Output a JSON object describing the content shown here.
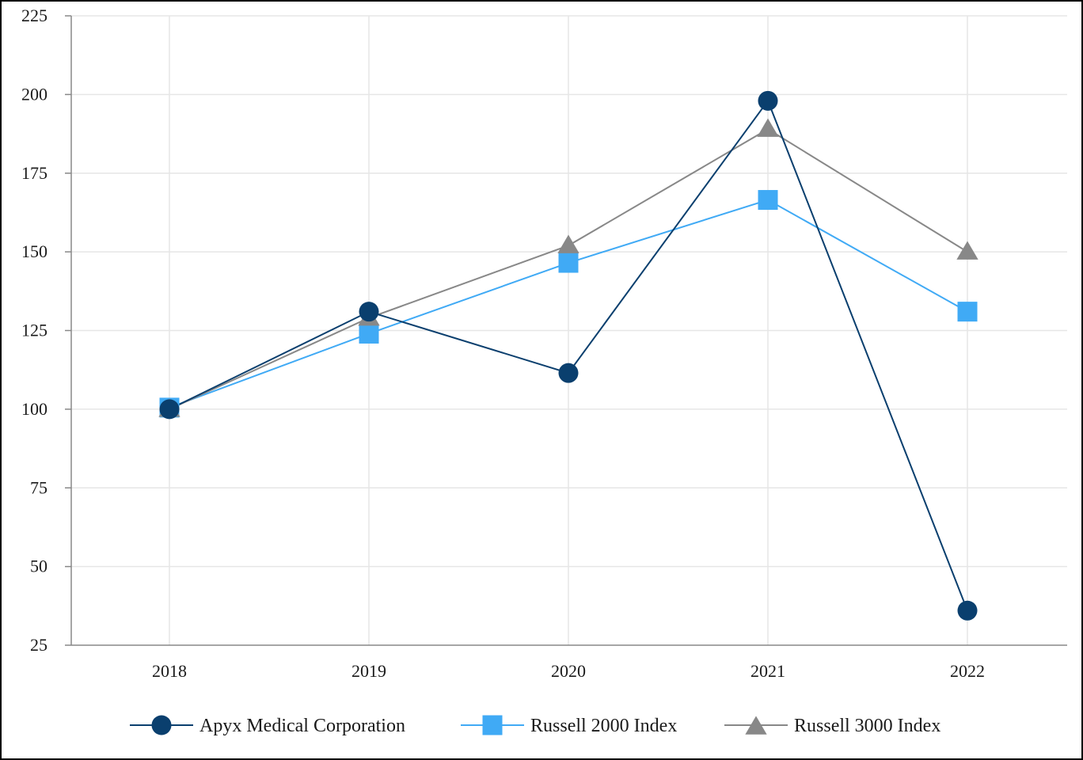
{
  "chart_data": {
    "type": "line",
    "title": "",
    "xlabel": "",
    "ylabel": "",
    "categories": [
      "2018",
      "2019",
      "2020",
      "2021",
      "2022"
    ],
    "ylim": [
      25,
      225
    ],
    "yticks": [
      25,
      50,
      75,
      100,
      125,
      150,
      175,
      200,
      225
    ],
    "grid": true,
    "legend_position": "bottom",
    "series": [
      {
        "name": "Apyx Medical Corporation",
        "values": [
          100,
          131,
          111.5,
          198,
          36
        ],
        "color": "#0a3f6e",
        "marker": "circle"
      },
      {
        "name": "Russell 2000 Index",
        "values": [
          100.5,
          124,
          146.5,
          166.5,
          131
        ],
        "color": "#40aaf5",
        "marker": "square"
      },
      {
        "name": "Russell 3000 Index",
        "values": [
          100,
          129,
          152,
          189,
          150
        ],
        "color": "#888888",
        "marker": "triangle"
      }
    ]
  }
}
